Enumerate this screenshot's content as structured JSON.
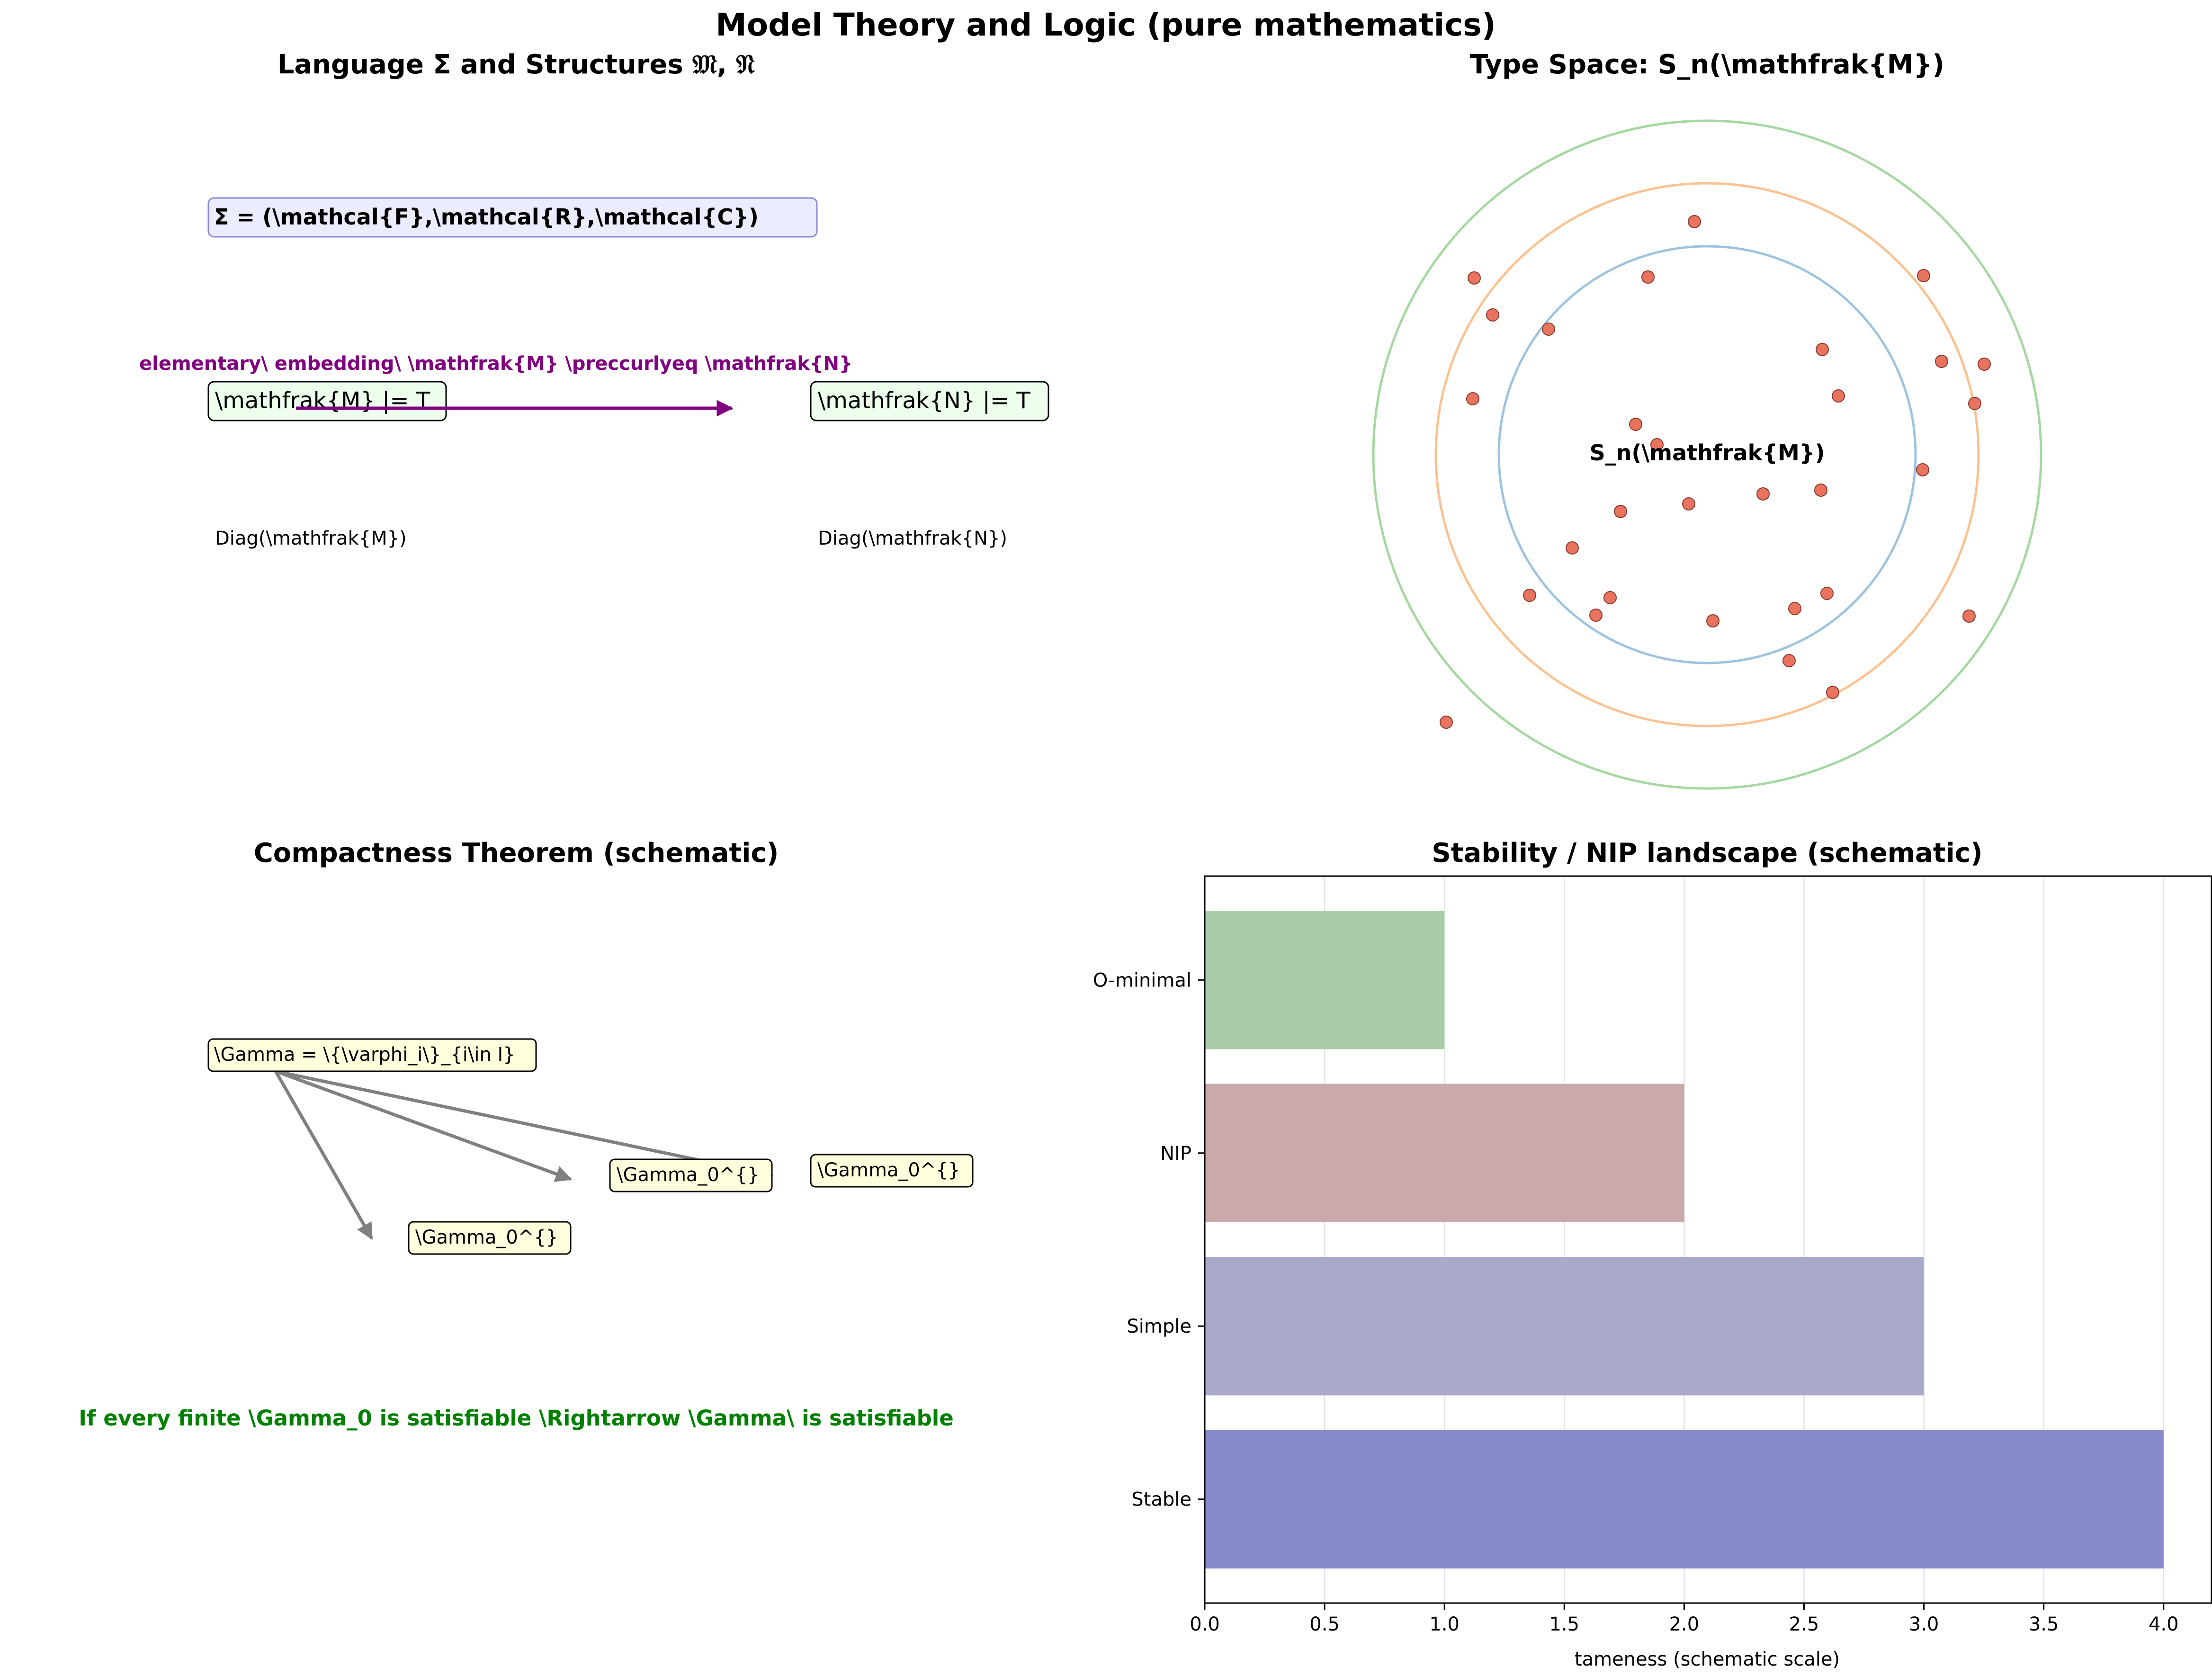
{
  "figure": {
    "suptitle": "Model Theory and Logic (pure mathematics)"
  },
  "colors": {
    "signature_box_fill": "#ececff",
    "signature_box_edge": "#8888dd",
    "structure_box_fill": "#eeffee",
    "gamma_box_fill": "#ffffdd",
    "embedding": "#800080",
    "compactness_text": "#008000",
    "arrow_gray": "#808080",
    "type_point": "#e8735f",
    "ring_inner": "#9ec3df",
    "ring_middle": "#fbc291",
    "ring_outer": "#a5d8a0"
  },
  "panel_language": {
    "title": "Language Σ and Structures 𝔐, 𝔑",
    "signature": "Σ = (\\mathcal{F},\\mathcal{R},\\mathcal{C})",
    "embedding_label": "elementary\\ embedding\\  \\mathfrak{M} \\preccurlyeq \\mathfrak{N}",
    "structure_m": "\\mathfrak{M} |= T",
    "structure_n": "\\mathfrak{N} |= T",
    "diag_m": "Diag(\\mathfrak{M})",
    "diag_n": "Diag(\\mathfrak{N})"
  },
  "panel_types": {
    "title": "Type Space: S_n(\\mathfrak{M})",
    "center_label": "S_n(\\mathfrak{M})"
  },
  "panel_compactness": {
    "title": "Compactness Theorem (schematic)",
    "gamma": "\\Gamma = \\{\\varphi_i\\}_{i\\in I}",
    "subsets": [
      "\\Gamma_0^{}",
      "\\Gamma_0^{}",
      "\\Gamma_0^{}"
    ],
    "conclusion": "If every finite \\Gamma_0 is satisfiable \\Rightarrow \\Gamma\\ is satisfiable"
  },
  "chart_data": {
    "type": "bar",
    "orientation": "horizontal",
    "title": "Stability / NIP landscape (schematic)",
    "xlabel": "tameness (schematic scale)",
    "ylabel": "",
    "categories": [
      "Stable",
      "Simple",
      "NIP",
      "O-minimal"
    ],
    "values": [
      4,
      3,
      2,
      1
    ],
    "colors": [
      "#8889cc",
      "#a9a9cb",
      "#c9a9a9",
      "#a9cba9"
    ],
    "xlim": [
      0,
      4.2
    ],
    "xticks": [
      0.0,
      0.5,
      1.0,
      1.5,
      2.0,
      2.5,
      3.0,
      3.5,
      4.0
    ],
    "grid": "x"
  }
}
